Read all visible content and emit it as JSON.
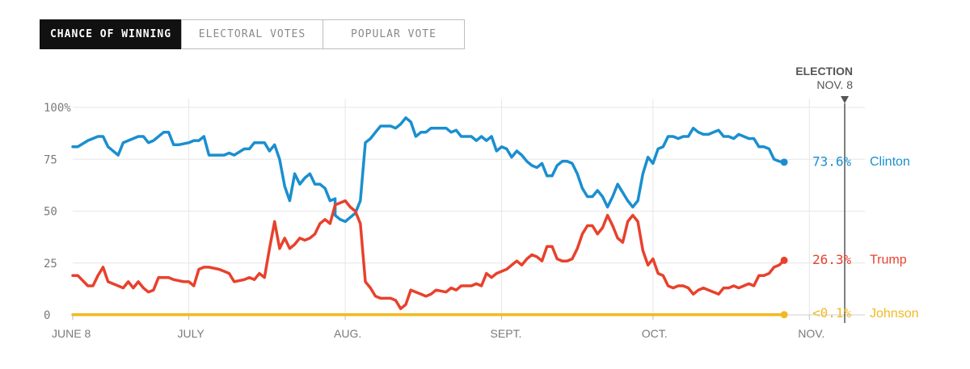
{
  "tabs": [
    {
      "label": "CHANCE OF WINNING",
      "active": true
    },
    {
      "label": "ELECTORAL VOTES",
      "active": false
    },
    {
      "label": "POPULAR VOTE",
      "active": false
    }
  ],
  "event": {
    "title": "ELECTION",
    "date": "NOV. 8"
  },
  "colors": {
    "clinton": "#1a8fcf",
    "trump": "#e8412c",
    "johnson": "#f2b920",
    "grid": "#e6e6e6",
    "axis": "#555555"
  },
  "chart_data": {
    "type": "line",
    "y_tick_labels": [
      "100%",
      "75",
      "50",
      "25",
      "0"
    ],
    "y_tick_values": [
      100,
      75,
      50,
      25,
      0
    ],
    "ylim": [
      0,
      100
    ],
    "x_domain": [
      "2016-06-08",
      "2016-11-08"
    ],
    "x_ticks": [
      {
        "label": "JUNE 8",
        "date": "2016-06-08"
      },
      {
        "label": "JULY",
        "date": "2016-07-01"
      },
      {
        "label": "AUG.",
        "date": "2016-08-01"
      },
      {
        "label": "SEPT.",
        "date": "2016-09-01"
      },
      {
        "label": "OCT.",
        "date": "2016-10-01"
      },
      {
        "label": "NOV.",
        "date": "2016-11-01"
      }
    ],
    "grid": true,
    "series": [
      {
        "key": "clinton",
        "end_value": "73.6%",
        "end_name": "Clinton",
        "points": [
          [
            "2016-06-08",
            81
          ],
          [
            "2016-06-09",
            81
          ],
          [
            "2016-06-11",
            84
          ],
          [
            "2016-06-13",
            86
          ],
          [
            "2016-06-14",
            86
          ],
          [
            "2016-06-15",
            81
          ],
          [
            "2016-06-17",
            77
          ],
          [
            "2016-06-18",
            83
          ],
          [
            "2016-06-19",
            84
          ],
          [
            "2016-06-21",
            86
          ],
          [
            "2016-06-22",
            86
          ],
          [
            "2016-06-23",
            83
          ],
          [
            "2016-06-24",
            84
          ],
          [
            "2016-06-26",
            88
          ],
          [
            "2016-06-27",
            88
          ],
          [
            "2016-06-28",
            82
          ],
          [
            "2016-06-29",
            82
          ],
          [
            "2016-07-01",
            83
          ],
          [
            "2016-07-02",
            84
          ],
          [
            "2016-07-03",
            84
          ],
          [
            "2016-07-04",
            86
          ],
          [
            "2016-07-05",
            77
          ],
          [
            "2016-07-07",
            77
          ],
          [
            "2016-07-08",
            77
          ],
          [
            "2016-07-09",
            78
          ],
          [
            "2016-07-10",
            77
          ],
          [
            "2016-07-12",
            80
          ],
          [
            "2016-07-13",
            80
          ],
          [
            "2016-07-14",
            83
          ],
          [
            "2016-07-15",
            83
          ],
          [
            "2016-07-16",
            83
          ],
          [
            "2016-07-17",
            79
          ],
          [
            "2016-07-18",
            82
          ],
          [
            "2016-07-19",
            75
          ],
          [
            "2016-07-20",
            62
          ],
          [
            "2016-07-21",
            55
          ],
          [
            "2016-07-22",
            68
          ],
          [
            "2016-07-23",
            63
          ],
          [
            "2016-07-24",
            66
          ],
          [
            "2016-07-25",
            68
          ],
          [
            "2016-07-26",
            63
          ],
          [
            "2016-07-27",
            63
          ],
          [
            "2016-07-28",
            61
          ],
          [
            "2016-07-29",
            55
          ],
          [
            "2016-07-30",
            56
          ],
          [
            "2016-07-30",
            48
          ],
          [
            "2016-07-31",
            46
          ],
          [
            "2016-08-01",
            45
          ],
          [
            "2016-08-02",
            47
          ],
          [
            "2016-08-03",
            49
          ],
          [
            "2016-08-04",
            55
          ],
          [
            "2016-08-05",
            83
          ],
          [
            "2016-08-06",
            85
          ],
          [
            "2016-08-07",
            88
          ],
          [
            "2016-08-08",
            91
          ],
          [
            "2016-08-10",
            91
          ],
          [
            "2016-08-11",
            90
          ],
          [
            "2016-08-12",
            92
          ],
          [
            "2016-08-13",
            95
          ],
          [
            "2016-08-14",
            93
          ],
          [
            "2016-08-15",
            86
          ],
          [
            "2016-08-16",
            88
          ],
          [
            "2016-08-17",
            88
          ],
          [
            "2016-08-18",
            90
          ],
          [
            "2016-08-19",
            90
          ],
          [
            "2016-08-21",
            90
          ],
          [
            "2016-08-22",
            88
          ],
          [
            "2016-08-23",
            89
          ],
          [
            "2016-08-24",
            86
          ],
          [
            "2016-08-26",
            86
          ],
          [
            "2016-08-27",
            84
          ],
          [
            "2016-08-28",
            86
          ],
          [
            "2016-08-29",
            84
          ],
          [
            "2016-08-30",
            86
          ],
          [
            "2016-08-31",
            79
          ],
          [
            "2016-09-01",
            81
          ],
          [
            "2016-09-02",
            80
          ],
          [
            "2016-09-03",
            76
          ],
          [
            "2016-09-04",
            79
          ],
          [
            "2016-09-05",
            77
          ],
          [
            "2016-09-06",
            74
          ],
          [
            "2016-09-07",
            72
          ],
          [
            "2016-09-08",
            71
          ],
          [
            "2016-09-09",
            73
          ],
          [
            "2016-09-10",
            67
          ],
          [
            "2016-09-11",
            67
          ],
          [
            "2016-09-12",
            72
          ],
          [
            "2016-09-13",
            74
          ],
          [
            "2016-09-14",
            74
          ],
          [
            "2016-09-15",
            73
          ],
          [
            "2016-09-16",
            68
          ],
          [
            "2016-09-17",
            61
          ],
          [
            "2016-09-18",
            57
          ],
          [
            "2016-09-19",
            57
          ],
          [
            "2016-09-20",
            60
          ],
          [
            "2016-09-21",
            57
          ],
          [
            "2016-09-22",
            52
          ],
          [
            "2016-09-23",
            57
          ],
          [
            "2016-09-24",
            63
          ],
          [
            "2016-09-25",
            59
          ],
          [
            "2016-09-26",
            55
          ],
          [
            "2016-09-27",
            52
          ],
          [
            "2016-09-28",
            55
          ],
          [
            "2016-09-29",
            68
          ],
          [
            "2016-09-30",
            76
          ],
          [
            "2016-10-01",
            73
          ],
          [
            "2016-10-02",
            80
          ],
          [
            "2016-10-03",
            81
          ],
          [
            "2016-10-04",
            86
          ],
          [
            "2016-10-05",
            86
          ],
          [
            "2016-10-06",
            85
          ],
          [
            "2016-10-07",
            86
          ],
          [
            "2016-10-08",
            86
          ],
          [
            "2016-10-09",
            90
          ],
          [
            "2016-10-10",
            88
          ],
          [
            "2016-10-11",
            87
          ],
          [
            "2016-10-12",
            87
          ],
          [
            "2016-10-13",
            88
          ],
          [
            "2016-10-14",
            89
          ],
          [
            "2016-10-15",
            86
          ],
          [
            "2016-10-16",
            86
          ],
          [
            "2016-10-17",
            85
          ],
          [
            "2016-10-18",
            87
          ],
          [
            "2016-10-19",
            86
          ],
          [
            "2016-10-20",
            85
          ],
          [
            "2016-10-21",
            85
          ],
          [
            "2016-10-22",
            81
          ],
          [
            "2016-10-23",
            81
          ],
          [
            "2016-10-24",
            80
          ],
          [
            "2016-10-25",
            75
          ],
          [
            "2016-10-26",
            74
          ],
          [
            "2016-10-27",
            73.6
          ]
        ]
      },
      {
        "key": "trump",
        "end_value": "26.3%",
        "end_name": "Trump",
        "points": [
          [
            "2016-06-08",
            19
          ],
          [
            "2016-06-09",
            19
          ],
          [
            "2016-06-11",
            14
          ],
          [
            "2016-06-12",
            14
          ],
          [
            "2016-06-13",
            19
          ],
          [
            "2016-06-14",
            23
          ],
          [
            "2016-06-15",
            16
          ],
          [
            "2016-06-17",
            14
          ],
          [
            "2016-06-18",
            13
          ],
          [
            "2016-06-19",
            16
          ],
          [
            "2016-06-20",
            13
          ],
          [
            "2016-06-21",
            16
          ],
          [
            "2016-06-22",
            13
          ],
          [
            "2016-06-23",
            11
          ],
          [
            "2016-06-24",
            12
          ],
          [
            "2016-06-25",
            18
          ],
          [
            "2016-06-27",
            18
          ],
          [
            "2016-06-28",
            17
          ],
          [
            "2016-06-30",
            16
          ],
          [
            "2016-07-01",
            16
          ],
          [
            "2016-07-02",
            14
          ],
          [
            "2016-07-03",
            22
          ],
          [
            "2016-07-04",
            23
          ],
          [
            "2016-07-05",
            23
          ],
          [
            "2016-07-07",
            22
          ],
          [
            "2016-07-08",
            21
          ],
          [
            "2016-07-09",
            20
          ],
          [
            "2016-07-10",
            16
          ],
          [
            "2016-07-12",
            17
          ],
          [
            "2016-07-13",
            18
          ],
          [
            "2016-07-14",
            17
          ],
          [
            "2016-07-15",
            20
          ],
          [
            "2016-07-16",
            18
          ],
          [
            "2016-07-17",
            32
          ],
          [
            "2016-07-18",
            45
          ],
          [
            "2016-07-19",
            32
          ],
          [
            "2016-07-20",
            37
          ],
          [
            "2016-07-21",
            32
          ],
          [
            "2016-07-22",
            34
          ],
          [
            "2016-07-23",
            37
          ],
          [
            "2016-07-24",
            36
          ],
          [
            "2016-07-25",
            37
          ],
          [
            "2016-07-26",
            39
          ],
          [
            "2016-07-27",
            44
          ],
          [
            "2016-07-28",
            46
          ],
          [
            "2016-07-29",
            44
          ],
          [
            "2016-07-30",
            53
          ],
          [
            "2016-07-31",
            54
          ],
          [
            "2016-08-01",
            55
          ],
          [
            "2016-08-02",
            52
          ],
          [
            "2016-08-03",
            50
          ],
          [
            "2016-08-04",
            44
          ],
          [
            "2016-08-05",
            16
          ],
          [
            "2016-08-06",
            13
          ],
          [
            "2016-08-07",
            9
          ],
          [
            "2016-08-08",
            8
          ],
          [
            "2016-08-10",
            8
          ],
          [
            "2016-08-11",
            7
          ],
          [
            "2016-08-12",
            3
          ],
          [
            "2016-08-13",
            5
          ],
          [
            "2016-08-14",
            12
          ],
          [
            "2016-08-15",
            11
          ],
          [
            "2016-08-16",
            10
          ],
          [
            "2016-08-17",
            9
          ],
          [
            "2016-08-18",
            10
          ],
          [
            "2016-08-19",
            12
          ],
          [
            "2016-08-21",
            11
          ],
          [
            "2016-08-22",
            13
          ],
          [
            "2016-08-23",
            12
          ],
          [
            "2016-08-24",
            14
          ],
          [
            "2016-08-26",
            14
          ],
          [
            "2016-08-27",
            15
          ],
          [
            "2016-08-28",
            14
          ],
          [
            "2016-08-29",
            20
          ],
          [
            "2016-08-30",
            18
          ],
          [
            "2016-08-31",
            20
          ],
          [
            "2016-09-01",
            21
          ],
          [
            "2016-09-02",
            22
          ],
          [
            "2016-09-03",
            24
          ],
          [
            "2016-09-04",
            26
          ],
          [
            "2016-09-05",
            24
          ],
          [
            "2016-09-06",
            27
          ],
          [
            "2016-09-07",
            29
          ],
          [
            "2016-09-08",
            28
          ],
          [
            "2016-09-09",
            26
          ],
          [
            "2016-09-10",
            33
          ],
          [
            "2016-09-11",
            33
          ],
          [
            "2016-09-12",
            27
          ],
          [
            "2016-09-13",
            26
          ],
          [
            "2016-09-14",
            26
          ],
          [
            "2016-09-15",
            27
          ],
          [
            "2016-09-16",
            32
          ],
          [
            "2016-09-17",
            39
          ],
          [
            "2016-09-18",
            43
          ],
          [
            "2016-09-19",
            43
          ],
          [
            "2016-09-20",
            39
          ],
          [
            "2016-09-21",
            42
          ],
          [
            "2016-09-22",
            48
          ],
          [
            "2016-09-23",
            43
          ],
          [
            "2016-09-24",
            37
          ],
          [
            "2016-09-25",
            35
          ],
          [
            "2016-09-26",
            45
          ],
          [
            "2016-09-27",
            48
          ],
          [
            "2016-09-28",
            45
          ],
          [
            "2016-09-29",
            31
          ],
          [
            "2016-09-30",
            24
          ],
          [
            "2016-10-01",
            27
          ],
          [
            "2016-10-02",
            20
          ],
          [
            "2016-10-03",
            19
          ],
          [
            "2016-10-04",
            14
          ],
          [
            "2016-10-05",
            13
          ],
          [
            "2016-10-06",
            14
          ],
          [
            "2016-10-07",
            14
          ],
          [
            "2016-10-08",
            13
          ],
          [
            "2016-10-09",
            10
          ],
          [
            "2016-10-10",
            12
          ],
          [
            "2016-10-11",
            13
          ],
          [
            "2016-10-12",
            12
          ],
          [
            "2016-10-13",
            11
          ],
          [
            "2016-10-14",
            10
          ],
          [
            "2016-10-15",
            13
          ],
          [
            "2016-10-16",
            13
          ],
          [
            "2016-10-17",
            14
          ],
          [
            "2016-10-18",
            13
          ],
          [
            "2016-10-19",
            14
          ],
          [
            "2016-10-20",
            15
          ],
          [
            "2016-10-21",
            14
          ],
          [
            "2016-10-22",
            19
          ],
          [
            "2016-10-23",
            19
          ],
          [
            "2016-10-24",
            20
          ],
          [
            "2016-10-25",
            23
          ],
          [
            "2016-10-26",
            24
          ],
          [
            "2016-10-27",
            26.3
          ]
        ]
      },
      {
        "key": "johnson",
        "end_value": "<0.1%",
        "end_name": "Johnson",
        "points": [
          [
            "2016-06-08",
            0.1
          ],
          [
            "2016-10-27",
            0.1
          ]
        ]
      }
    ]
  }
}
